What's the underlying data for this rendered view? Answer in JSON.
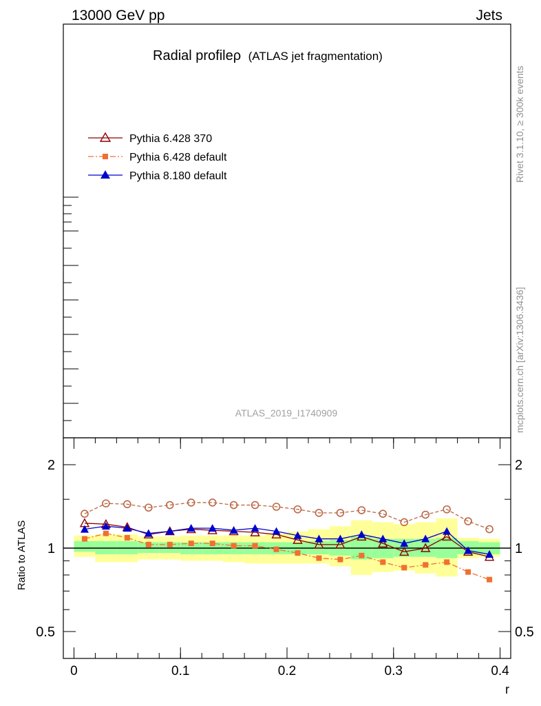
{
  "header": {
    "left": "13000 GeV pp",
    "right": "Jets"
  },
  "title": {
    "main": "Radial profile",
    "symbol": "ρ",
    "sub": "(ATLAS jet fragmentation)"
  },
  "analysis_id": "ATLAS_2019_I1740909",
  "side_texts": {
    "rivet": "Rivet 3.1.10, ≥ 300k events",
    "mcplots": "mcplots.cern.ch [arXiv:1306.3436]"
  },
  "legend": [
    {
      "label": "Pythia 6.428 370",
      "color": "#8b0000",
      "marker": "triangle-open",
      "dash": "solid"
    },
    {
      "label": "Pythia 6.428 default",
      "color": "#f07030",
      "marker": "square",
      "dash": "dashdot"
    },
    {
      "label": "Pythia 8.180 default",
      "color": "#0000cc",
      "marker": "triangle-filled",
      "dash": "solid"
    }
  ],
  "chart_data": {
    "type": "line",
    "xlabel": "r",
    "ylabel": "Ratio to ATLAS",
    "xlim": [
      -0.01,
      0.41
    ],
    "ylim": [
      0.4,
      2.5
    ],
    "y_scale": "log",
    "x_ticks": [
      "0",
      "0.1",
      "0.2",
      "0.3",
      "0.4"
    ],
    "y_ticks": [
      "0.5",
      "1",
      "2"
    ],
    "reference_line": 1,
    "x": [
      0.01,
      0.03,
      0.05,
      0.07,
      0.09,
      0.11,
      0.13,
      0.15,
      0.17,
      0.19,
      0.21,
      0.23,
      0.25,
      0.27,
      0.29,
      0.31,
      0.33,
      0.35,
      0.37,
      0.39
    ],
    "band_inner": [
      [
        0.97,
        1.06
      ],
      [
        0.95,
        1.06
      ],
      [
        0.95,
        1.06
      ],
      [
        0.96,
        1.05
      ],
      [
        0.96,
        1.05
      ],
      [
        0.95,
        1.05
      ],
      [
        0.95,
        1.05
      ],
      [
        0.95,
        1.05
      ],
      [
        0.95,
        1.05
      ],
      [
        0.95,
        1.05
      ],
      [
        0.95,
        1.05
      ],
      [
        0.95,
        1.06
      ],
      [
        0.94,
        1.07
      ],
      [
        0.91,
        1.1
      ],
      [
        0.92,
        1.08
      ],
      [
        0.93,
        1.08
      ],
      [
        0.93,
        1.08
      ],
      [
        0.92,
        1.09
      ],
      [
        0.95,
        1.06
      ],
      [
        0.95,
        1.05
      ]
    ],
    "band_outer": [
      [
        0.93,
        1.11
      ],
      [
        0.89,
        1.12
      ],
      [
        0.89,
        1.12
      ],
      [
        0.91,
        1.1
      ],
      [
        0.91,
        1.1
      ],
      [
        0.9,
        1.11
      ],
      [
        0.9,
        1.11
      ],
      [
        0.89,
        1.11
      ],
      [
        0.88,
        1.11
      ],
      [
        0.88,
        1.13
      ],
      [
        0.88,
        1.15
      ],
      [
        0.88,
        1.17
      ],
      [
        0.86,
        1.2
      ],
      [
        0.8,
        1.26
      ],
      [
        0.82,
        1.24
      ],
      [
        0.83,
        1.22
      ],
      [
        0.81,
        1.24
      ],
      [
        0.79,
        1.28
      ],
      [
        0.92,
        1.09
      ],
      [
        0.93,
        1.08
      ]
    ],
    "series": [
      {
        "name": "Pythia 6.428 370",
        "color": "#8b0000",
        "marker": "triangle-open",
        "values": [
          1.23,
          1.22,
          1.19,
          1.12,
          1.15,
          1.17,
          1.16,
          1.15,
          1.14,
          1.12,
          1.07,
          1.03,
          1.03,
          1.1,
          1.04,
          0.97,
          1.0,
          1.1,
          0.97,
          0.93
        ]
      },
      {
        "name": "Pythia 6.428 default",
        "color": "#f07030",
        "marker": "square",
        "values": [
          1.08,
          1.13,
          1.09,
          1.03,
          1.03,
          1.04,
          1.04,
          1.02,
          1.02,
          0.99,
          0.96,
          0.92,
          0.91,
          0.94,
          0.89,
          0.85,
          0.87,
          0.89,
          0.82,
          0.77
        ]
      },
      {
        "name": "",
        "color": "#bb6644",
        "marker": "circle-open",
        "dash": "dashed",
        "values": [
          1.33,
          1.45,
          1.44,
          1.4,
          1.43,
          1.46,
          1.46,
          1.43,
          1.43,
          1.41,
          1.38,
          1.34,
          1.34,
          1.37,
          1.33,
          1.24,
          1.32,
          1.38,
          1.25,
          1.17
        ]
      },
      {
        "name": "Pythia 8.180 default",
        "color": "#0000cc",
        "marker": "triangle-filled",
        "values": [
          1.17,
          1.2,
          1.18,
          1.13,
          1.15,
          1.18,
          1.18,
          1.16,
          1.18,
          1.15,
          1.11,
          1.08,
          1.08,
          1.12,
          1.08,
          1.04,
          1.08,
          1.15,
          0.98,
          0.95
        ]
      }
    ]
  }
}
